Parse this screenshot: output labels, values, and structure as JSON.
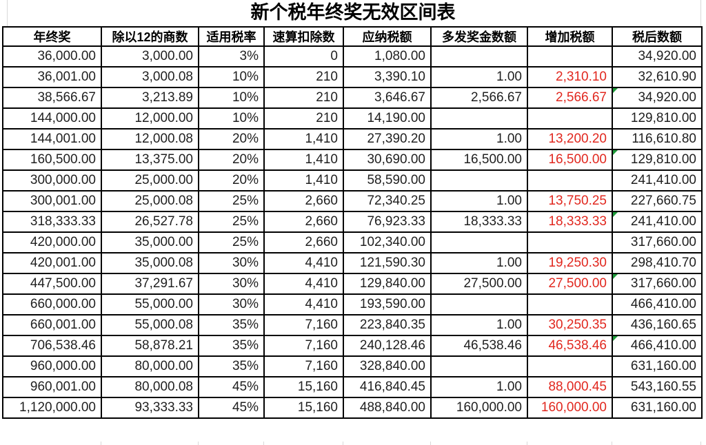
{
  "title": "新个税年终奖无效区间表",
  "colors": {
    "accent_red": "#e1271e",
    "marker_green": "#1e9c3a",
    "border_black": "#000000",
    "gridline_gray": "#d9d9d9",
    "text": "#1f1f1f"
  },
  "table": {
    "columns": [
      {
        "id": "annual-bonus",
        "label": "年终奖",
        "red": false
      },
      {
        "id": "quotient-by-12",
        "label": "除以12的商数",
        "red": false
      },
      {
        "id": "tax-rate",
        "label": "适用税率",
        "red": false
      },
      {
        "id": "quick-deduction",
        "label": "速算扣除数",
        "red": false
      },
      {
        "id": "tax-payable",
        "label": "应纳税额",
        "red": false
      },
      {
        "id": "extra-bonus",
        "label": "多发奖金数额",
        "red": false
      },
      {
        "id": "added-tax",
        "label": "增加税额",
        "red": true
      },
      {
        "id": "after-tax",
        "label": "税后数额",
        "red": false
      }
    ],
    "rows": [
      {
        "cells": [
          "36,000.00",
          "3,000.00",
          "3%",
          "0",
          "1,080.00",
          "",
          "",
          "34,920.00"
        ],
        "marker": false
      },
      {
        "cells": [
          "36,001.00",
          "3,000.08",
          "10%",
          "210",
          "3,390.10",
          "1.00",
          "2,310.10",
          "32,610.90"
        ],
        "marker": false
      },
      {
        "cells": [
          "38,566.67",
          "3,213.89",
          "10%",
          "210",
          "3,646.67",
          "2,566.67",
          "2,566.67",
          "34,920.00"
        ],
        "marker": true
      },
      {
        "cells": [
          "144,000.00",
          "12,000.00",
          "10%",
          "210",
          "14,190.00",
          "",
          "",
          "129,810.00"
        ],
        "marker": false
      },
      {
        "cells": [
          "144,001.00",
          "12,000.08",
          "20%",
          "1,410",
          "27,390.20",
          "1.00",
          "13,200.20",
          "116,610.80"
        ],
        "marker": false
      },
      {
        "cells": [
          "160,500.00",
          "13,375.00",
          "20%",
          "1,410",
          "30,690.00",
          "16,500.00",
          "16,500.00",
          "129,810.00"
        ],
        "marker": true
      },
      {
        "cells": [
          "300,000.00",
          "25,000.00",
          "20%",
          "1,410",
          "58,590.00",
          "",
          "",
          "241,410.00"
        ],
        "marker": false
      },
      {
        "cells": [
          "300,001.00",
          "25,000.08",
          "25%",
          "2,660",
          "72,340.25",
          "1.00",
          "13,750.25",
          "227,660.75"
        ],
        "marker": false
      },
      {
        "cells": [
          "318,333.33",
          "26,527.78",
          "25%",
          "2,660",
          "76,923.33",
          "18,333.33",
          "18,333.33",
          "241,410.00"
        ],
        "marker": true
      },
      {
        "cells": [
          "420,000.00",
          "35,000.00",
          "25%",
          "2,660",
          "102,340.00",
          "",
          "",
          "317,660.00"
        ],
        "marker": false
      },
      {
        "cells": [
          "420,001.00",
          "35,000.08",
          "30%",
          "4,410",
          "121,590.30",
          "1.00",
          "19,250.30",
          "298,410.70"
        ],
        "marker": false
      },
      {
        "cells": [
          "447,500.00",
          "37,291.67",
          "30%",
          "4,410",
          "129,840.00",
          "27,500.00",
          "27,500.00",
          "317,660.00"
        ],
        "marker": true
      },
      {
        "cells": [
          "660,000.00",
          "55,000.00",
          "30%",
          "4,410",
          "193,590.00",
          "",
          "",
          "466,410.00"
        ],
        "marker": false
      },
      {
        "cells": [
          "660,001.00",
          "55,000.08",
          "35%",
          "7,160",
          "223,840.35",
          "1.00",
          "30,250.35",
          "436,160.65"
        ],
        "marker": false
      },
      {
        "cells": [
          "706,538.46",
          "58,878.21",
          "35%",
          "7,160",
          "240,128.46",
          "46,538.46",
          "46,538.46",
          "466,410.00"
        ],
        "marker": true
      },
      {
        "cells": [
          "960,000.00",
          "80,000.00",
          "35%",
          "7,160",
          "328,840.00",
          "",
          "",
          "631,160.00"
        ],
        "marker": false
      },
      {
        "cells": [
          "960,001.00",
          "80,000.08",
          "45%",
          "15,160",
          "416,840.45",
          "1.00",
          "88,000.45",
          "543,160.55"
        ],
        "marker": false
      },
      {
        "cells": [
          "1,120,000.00",
          "93,333.33",
          "45%",
          "15,160",
          "488,840.00",
          "160,000.00",
          "160,000.00",
          "631,160.00"
        ],
        "marker": false
      }
    ]
  }
}
